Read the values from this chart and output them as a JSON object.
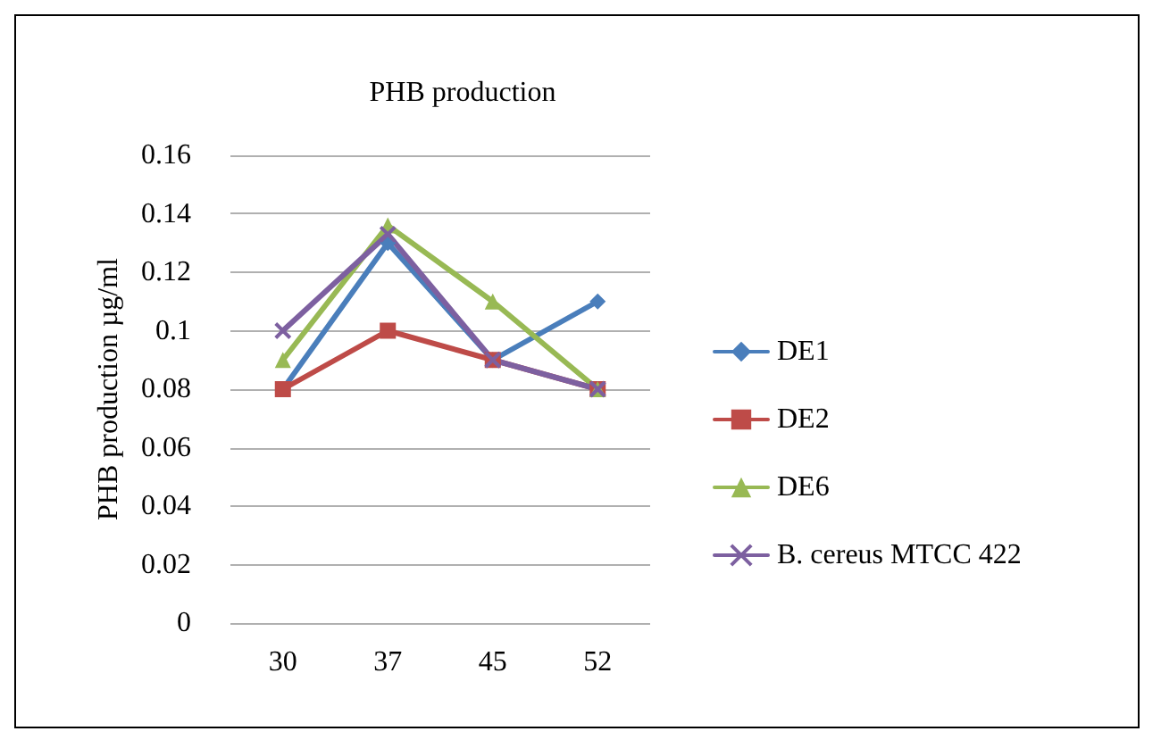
{
  "chart_data": {
    "type": "line",
    "title": "PHB production",
    "ylabel": "PHB production µg/ml",
    "categories": [
      "30",
      "37",
      "45",
      "52"
    ],
    "series": [
      {
        "name": "DE1",
        "color": "#4a7ebb",
        "marker": "diamond",
        "values": [
          0.08,
          0.13,
          0.09,
          0.11
        ]
      },
      {
        "name": "DE2",
        "color": "#be4b48",
        "marker": "square",
        "values": [
          0.08,
          0.1,
          0.09,
          0.08
        ]
      },
      {
        "name": "DE6",
        "color": "#98b954",
        "marker": "triangle",
        "values": [
          0.09,
          0.136,
          0.11,
          0.08
        ]
      },
      {
        "name": "B. cereus MTCC 422",
        "color": "#7d60a0",
        "marker": "cross",
        "values": [
          0.1,
          0.133,
          0.09,
          0.08
        ]
      }
    ],
    "ylim": [
      0,
      0.16
    ],
    "yticks": [
      0,
      0.02,
      0.04,
      0.06,
      0.08,
      0.1,
      0.12,
      0.14,
      0.16
    ],
    "grid": "y",
    "legend": "right"
  }
}
